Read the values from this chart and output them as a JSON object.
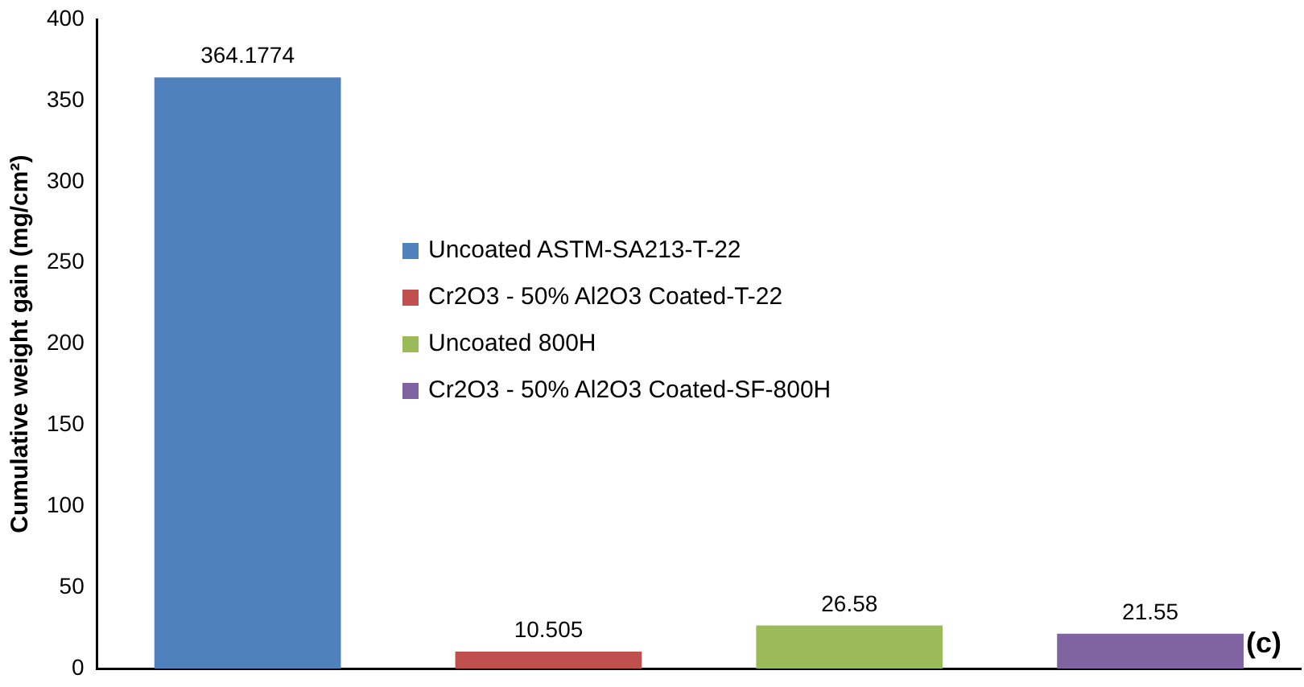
{
  "chart_data": {
    "type": "bar",
    "ylabel": "Cumulative weight gain (mg/cm²)",
    "categories": [
      null,
      null,
      null,
      null
    ],
    "series": [
      {
        "name": "Uncoated ASTM-SA213-T-22",
        "color": "#4f81bd",
        "values": [
          364.1774,
          null,
          null,
          null
        ]
      },
      {
        "name": "Cr2O3 - 50% Al2O3 Coated-T-22",
        "color": "#c0504d",
        "values": [
          null,
          10.505,
          null,
          null
        ]
      },
      {
        "name": "Uncoated 800H",
        "color": "#9bbb59",
        "values": [
          null,
          null,
          26.58,
          null
        ]
      },
      {
        "name": "Cr2O3 - 50% Al2O3 Coated-SF-800H",
        "color": "#8064a2",
        "values": [
          null,
          null,
          null,
          21.55
        ]
      }
    ],
    "ylim": [
      0,
      400
    ],
    "yticks": [
      0,
      50,
      100,
      150,
      200,
      250,
      300,
      350,
      400
    ],
    "grid": false,
    "legend": "center",
    "data_labels": true,
    "annotations": [
      "(c)"
    ]
  }
}
